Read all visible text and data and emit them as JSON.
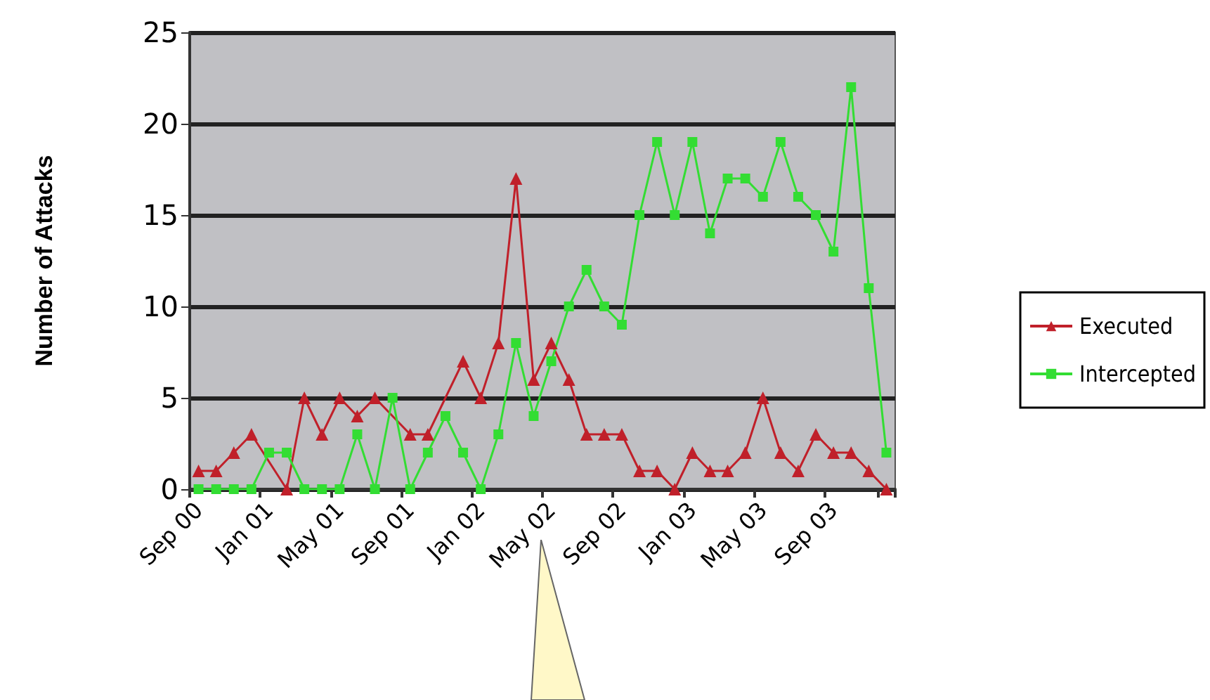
{
  "chart_data": {
    "type": "line",
    "ylabel": "Number of Attacks",
    "categories": [
      "Sep 00",
      null,
      null,
      null,
      "Jan 01",
      null,
      null,
      null,
      "May 01",
      null,
      null,
      null,
      "Sep 01",
      null,
      null,
      null,
      "Jan 02",
      null,
      null,
      null,
      "May 02",
      null,
      null,
      null,
      "Sep 02",
      null,
      null,
      null,
      "Jan 03",
      null,
      null,
      null,
      "May 03",
      null,
      null,
      null,
      "Sep 03",
      null,
      null,
      null
    ],
    "series": [
      {
        "name": "Executed",
        "color": "#c0202a",
        "marker": "triangle",
        "values": [
          1,
          1,
          2,
          3,
          null,
          0,
          5,
          3,
          5,
          4,
          5,
          null,
          3,
          3,
          null,
          7,
          5,
          8,
          17,
          6,
          8,
          6,
          3,
          3,
          3,
          1,
          1,
          0,
          2,
          1,
          1,
          2,
          5,
          2,
          1,
          3,
          2,
          2,
          1,
          0
        ]
      },
      {
        "name": "Intercepted",
        "color": "#33dd33",
        "marker": "square",
        "values": [
          0,
          0,
          0,
          0,
          2,
          2,
          0,
          0,
          0,
          3,
          0,
          5,
          0,
          2,
          4,
          2,
          0,
          3,
          8,
          4,
          7,
          10,
          12,
          10,
          9,
          15,
          19,
          15,
          19,
          14,
          17,
          17,
          16,
          19,
          16,
          15,
          13,
          22,
          11,
          2
        ]
      }
    ],
    "ylim": [
      0,
      25
    ],
    "yticks": [
      0,
      5,
      10,
      15,
      20,
      25
    ],
    "grid": "y",
    "legend": "right",
    "line_style": "solid"
  }
}
